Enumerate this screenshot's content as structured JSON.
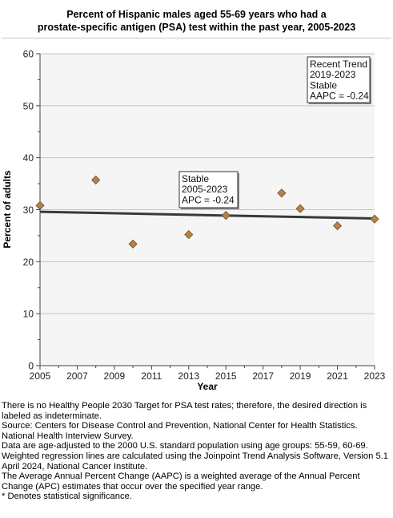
{
  "chart_data": {
    "type": "scatter",
    "title_line1": "Percent of Hispanic males aged 55-69 years who had a",
    "title_line2": "prostate-specific antigen (PSA) test within the past year, 2005-2023",
    "xlabel": "Year",
    "ylabel": "Percent of adults",
    "xlim": [
      2005,
      2023
    ],
    "ylim": [
      0,
      60
    ],
    "x_ticks": [
      2005,
      2007,
      2009,
      2011,
      2013,
      2015,
      2017,
      2019,
      2021,
      2023
    ],
    "y_ticks": [
      0,
      10,
      20,
      30,
      40,
      50,
      60
    ],
    "grid": true,
    "points": [
      {
        "x": 2005,
        "y": 30.8
      },
      {
        "x": 2008,
        "y": 35.7
      },
      {
        "x": 2010,
        "y": 23.4
      },
      {
        "x": 2013,
        "y": 25.2
      },
      {
        "x": 2015,
        "y": 28.9
      },
      {
        "x": 2018,
        "y": 33.2
      },
      {
        "x": 2019,
        "y": 30.2
      },
      {
        "x": 2021,
        "y": 26.9
      },
      {
        "x": 2023,
        "y": 28.2
      }
    ],
    "trend_line": {
      "x": [
        2005,
        2023
      ],
      "y": [
        29.6,
        28.3
      ]
    },
    "marker_color": "#b5834a",
    "line_color": "#333a40",
    "annotations": [
      {
        "lines": [
          "Stable",
          "2005-2023",
          "APC = -0.24"
        ]
      },
      {
        "lines": [
          "Recent Trend",
          "2019-2023",
          "Stable",
          "AAPC = -0.24"
        ]
      }
    ]
  },
  "footnotes": [
    "There is no Healthy People 2030 Target for PSA test rates; therefore, the desired direction is labeled as indeterminate.",
    "Source: Centers for Disease Control and Prevention, National Center for Health Statistics. National Health Interview Survey.",
    "Data are age-adjusted to the 2000 U.S. standard population using age groups: 55-59, 60-69.",
    "Weighted regression lines are calculated using the Joinpoint Trend Analysis Software, Version 5.1 April 2024, National Cancer Institute.",
    "The Average Annual Percent Change (AAPC) is a weighted average of the Annual Percent Change (APC) estimates that occur over the specified year range.",
    "* Denotes statistical significance."
  ]
}
